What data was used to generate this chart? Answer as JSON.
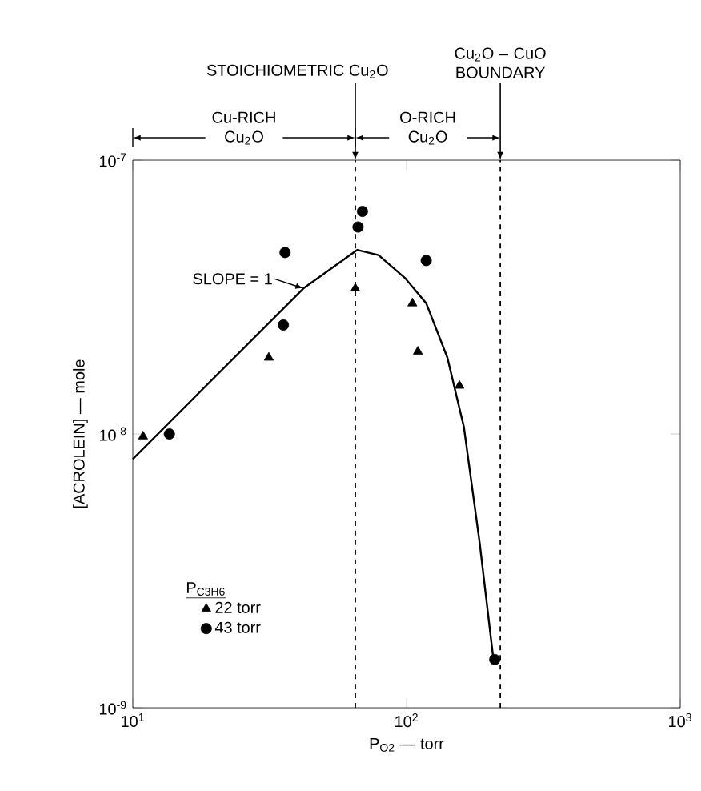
{
  "chart_data": {
    "type": "scatter",
    "xlabel": "P$_{O2}$ — torr",
    "ylabel": "[ACROLEIN] — mole",
    "legend_title": "P$_{C3H6}$",
    "log": "xy",
    "xlim": [
      10,
      1000
    ],
    "ylim": [
      1e-09,
      1e-07
    ],
    "xticks": [
      {
        "value": 10,
        "label": "10$^{1}$"
      },
      {
        "value": 100,
        "label": "10$^{2}$"
      },
      {
        "value": 1000,
        "label": "10$^{3}$"
      }
    ],
    "yticks": [
      {
        "value": 1e-09,
        "label": "10$^{-9}$"
      },
      {
        "value": 1e-08,
        "label": "10$^{-8}$"
      },
      {
        "value": 1e-07,
        "label": "10$^{-7}$"
      }
    ],
    "legend": "bottom left",
    "grid": false,
    "series": [
      {
        "name": "22 torr",
        "color": "#000000",
        "marker": "triangle",
        "x": [
          10.9,
          31.4,
          65,
          105,
          110,
          156
        ],
        "values": [
          9.8e-09,
          1.9e-08,
          3.4e-08,
          3e-08,
          2e-08,
          1.5e-08
        ]
      },
      {
        "name": "43 torr",
        "color": "#000000",
        "marker": "circle",
        "x": [
          13.6,
          36,
          35.5,
          66.5,
          69,
          118,
          210
        ],
        "values": [
          1e-08,
          4.6e-08,
          2.5e-08,
          5.7e-08,
          6.5e-08,
          4.3e-08,
          1.5e-09
        ]
      },
      {
        "type": "line",
        "color": "#000000",
        "marker": "none",
        "line_style": "solid",
        "x": [
          10,
          42,
          66,
          79,
          99,
          118,
          141,
          162,
          185,
          207
        ],
        "values": [
          8.1e-09,
          3.4e-08,
          4.7e-08,
          4.5e-08,
          3.7e-08,
          3e-08,
          1.9e-08,
          1.06e-08,
          4e-09,
          1.54e-09
        ]
      }
    ],
    "ref_lines": [
      {
        "axis": "x",
        "value": 65,
        "label": "STOICHIOMETRIC Cu$_{2}$O",
        "line_style": "dashed"
      },
      {
        "axis": "x",
        "value": 220,
        "label": "Cu$_{2}$O – CuO BOUNDARY",
        "line_style": "dashed"
      }
    ],
    "annotations": [
      "Cu-RICH Cu$_{2}$O",
      "O-RICH Cu$_{2}$O",
      "SLOPE = 1"
    ]
  }
}
